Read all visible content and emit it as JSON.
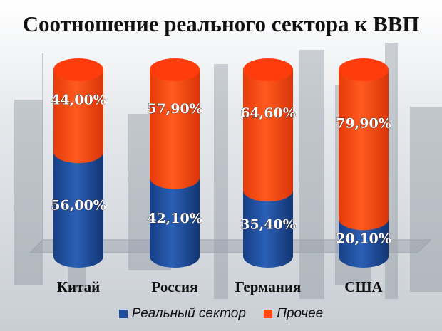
{
  "chart_data": {
    "type": "bar",
    "stacked": true,
    "title": "Соотношение реального сектора к ВВП",
    "categories": [
      "Китай",
      "Россия",
      "Германия",
      "США"
    ],
    "series": [
      {
        "name": "Реальный сектор",
        "values": [
          56.0,
          42.1,
          35.4,
          20.1
        ],
        "labels": [
          "56,00%",
          "42,10%",
          "35,40%",
          "20,10%"
        ],
        "color": "#1f4e9e"
      },
      {
        "name": "Прочее",
        "values": [
          44.0,
          57.9,
          64.6,
          79.9
        ],
        "labels": [
          "44,00%",
          "57,90%",
          "64,60%",
          "79,90%"
        ],
        "color": "#ff4a12"
      }
    ],
    "ylim": [
      0,
      100
    ],
    "legend_position": "bottom"
  }
}
